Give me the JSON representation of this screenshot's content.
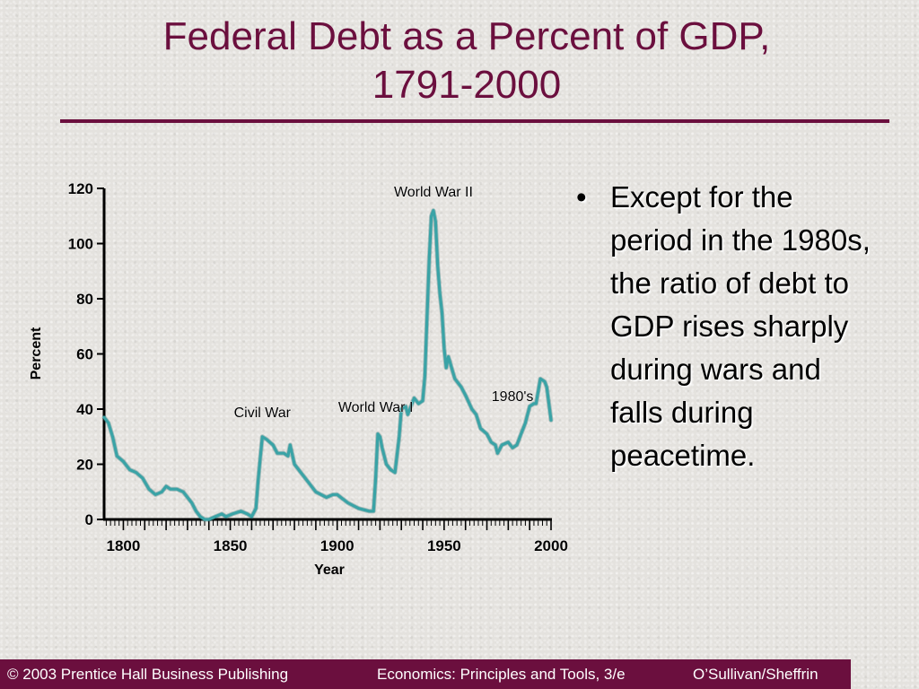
{
  "slide": {
    "title_line1": "Federal Debt as a Percent of GDP,",
    "title_line2": "1791-2000",
    "bullet_text": "Except for the period in the 1980s, the ratio of debt to GDP rises sharply during wars and falls during peacetime.",
    "bullet_marker": "•",
    "title_color": "#6b0f3e",
    "line_color": "#3aa3a6"
  },
  "footer": {
    "left": "© 2003 Prentice Hall Business Publishing",
    "center": "Economics: Principles and Tools, 3/e",
    "right": "O’Sullivan/Sheffrin"
  },
  "chart_data": {
    "type": "line",
    "title": "",
    "xlabel": "Year",
    "ylabel": "Percent",
    "xlim": [
      1791,
      2000
    ],
    "ylim": [
      0,
      120
    ],
    "xticks": [
      1800,
      1850,
      1900,
      1950,
      2000
    ],
    "yticks": [
      0,
      20,
      40,
      60,
      80,
      100,
      120
    ],
    "annotations": [
      {
        "text": "Civil War",
        "x": 1865,
        "y": 37
      },
      {
        "text": "World War I",
        "x": 1918,
        "y": 39
      },
      {
        "text": "World War II",
        "x": 1945,
        "y": 117
      },
      {
        "text": "1980's",
        "x": 1982,
        "y": 43
      }
    ],
    "series": [
      {
        "x": [
          1791,
          1793,
          1795,
          1797,
          1800,
          1803,
          1806,
          1809,
          1812,
          1815,
          1818,
          1820,
          1822,
          1825,
          1828,
          1830,
          1832,
          1834,
          1836,
          1838,
          1840,
          1843,
          1846,
          1848,
          1851,
          1855,
          1858,
          1860,
          1862,
          1863,
          1864,
          1865,
          1867,
          1870,
          1872,
          1875,
          1877,
          1878,
          1880,
          1885,
          1890,
          1895,
          1898,
          1900,
          1905,
          1910,
          1915,
          1917,
          1918,
          1919,
          1920,
          1921,
          1923,
          1925,
          1927,
          1929,
          1930,
          1932,
          1933,
          1934,
          1936,
          1938,
          1940,
          1941,
          1942,
          1943,
          1944,
          1945,
          1946,
          1947,
          1948,
          1949,
          1950,
          1951,
          1952,
          1955,
          1958,
          1960,
          1963,
          1965,
          1967,
          1970,
          1972,
          1974,
          1975,
          1977,
          1980,
          1982,
          1984,
          1986,
          1988,
          1990,
          1992,
          1993,
          1995,
          1997,
          1998,
          2000
        ],
        "values": [
          37,
          35,
          30,
          23,
          21,
          18,
          17,
          15,
          11,
          9,
          10,
          12,
          11,
          11,
          10,
          8,
          6,
          3,
          1,
          0,
          0,
          1,
          2,
          1,
          2,
          3,
          2,
          1,
          4,
          14,
          22,
          30,
          29,
          27,
          24,
          24,
          23,
          27,
          20,
          15,
          10,
          8,
          9,
          9,
          6,
          4,
          3,
          3,
          15,
          31,
          30,
          26,
          20,
          18,
          17,
          30,
          40,
          41,
          38,
          40,
          44,
          42,
          43,
          52,
          73,
          94,
          110,
          112,
          108,
          92,
          82,
          75,
          62,
          55,
          59,
          51,
          48,
          45,
          40,
          38,
          33,
          31,
          28,
          27,
          24,
          27,
          28,
          26,
          27,
          31,
          35,
          41,
          42,
          42,
          51,
          50,
          48,
          36
        ]
      }
    ]
  }
}
